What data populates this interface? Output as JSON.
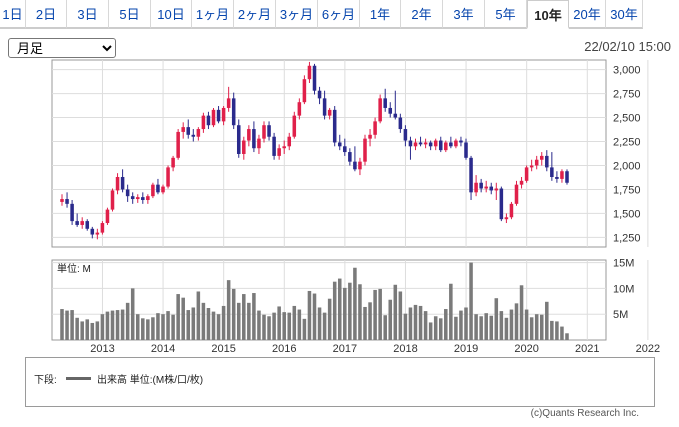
{
  "tabs": [
    {
      "label": "1日",
      "w": 26
    },
    {
      "label": "2日",
      "w": 41
    },
    {
      "label": "3日",
      "w": 42
    },
    {
      "label": "5日",
      "w": 42
    },
    {
      "label": "10日",
      "w": 41
    },
    {
      "label": "1ヶ月",
      "w": 42
    },
    {
      "label": "2ヶ月",
      "w": 42
    },
    {
      "label": "3ヶ月",
      "w": 42
    },
    {
      "label": "6ヶ月",
      "w": 42
    },
    {
      "label": "1年",
      "w": 41
    },
    {
      "label": "2年",
      "w": 42
    },
    {
      "label": "3年",
      "w": 42
    },
    {
      "label": "5年",
      "w": 42
    },
    {
      "label": "10年",
      "w": 41,
      "active": true
    },
    {
      "label": "20年",
      "w": 37
    },
    {
      "label": "30年",
      "w": 37
    }
  ],
  "period_select": {
    "value": "月足",
    "options": [
      "月足"
    ]
  },
  "as_of": "22/02/10 15:00",
  "legend": {
    "prefix": "下段:",
    "text": "出来高 単位:(M株/口/枚)"
  },
  "copyright": "(c)Quants Research Inc.",
  "chart_data": {
    "type": "candlestick",
    "interval": "monthly",
    "price_axis": {
      "ticks": [
        1250,
        1500,
        1750,
        2000,
        2250,
        2500,
        2750,
        3000
      ],
      "range": [
        1150,
        3100
      ]
    },
    "volume_axis": {
      "unit_label": "単位: M",
      "ticks": [
        "15M",
        "10M",
        "5M"
      ],
      "range": [
        0,
        15.5
      ]
    },
    "year_labels": [
      "2013",
      "2014",
      "2015",
      "2016",
      "2017",
      "2018",
      "2019",
      "2020",
      "2021",
      "2022"
    ],
    "colors": {
      "up": "#e0204a",
      "down": "#2a2a8c",
      "volume": "#7a7a7a",
      "grid": "#dddddd"
    },
    "ohlc": [
      [
        1620,
        1700,
        1580,
        1650
      ],
      [
        1650,
        1720,
        1560,
        1600
      ],
      [
        1600,
        1640,
        1380,
        1420
      ],
      [
        1420,
        1500,
        1360,
        1380
      ],
      [
        1380,
        1460,
        1340,
        1420
      ],
      [
        1420,
        1440,
        1320,
        1340
      ],
      [
        1340,
        1360,
        1240,
        1280
      ],
      [
        1280,
        1340,
        1230,
        1300
      ],
      [
        1300,
        1420,
        1280,
        1400
      ],
      [
        1400,
        1560,
        1380,
        1540
      ],
      [
        1540,
        1760,
        1520,
        1740
      ],
      [
        1740,
        1920,
        1700,
        1880
      ],
      [
        1880,
        1960,
        1720,
        1750
      ],
      [
        1750,
        1800,
        1620,
        1680
      ],
      [
        1680,
        1720,
        1600,
        1650
      ],
      [
        1650,
        1700,
        1610,
        1670
      ],
      [
        1670,
        1720,
        1600,
        1640
      ],
      [
        1640,
        1700,
        1600,
        1680
      ],
      [
        1680,
        1820,
        1660,
        1800
      ],
      [
        1800,
        1860,
        1700,
        1720
      ],
      [
        1720,
        1800,
        1700,
        1780
      ],
      [
        1780,
        2000,
        1760,
        1980
      ],
      [
        1980,
        2100,
        1940,
        2080
      ],
      [
        2080,
        2380,
        2060,
        2350
      ],
      [
        2350,
        2450,
        2280,
        2400
      ],
      [
        2400,
        2480,
        2280,
        2320
      ],
      [
        2320,
        2380,
        2250,
        2300
      ],
      [
        2300,
        2400,
        2260,
        2380
      ],
      [
        2380,
        2550,
        2340,
        2520
      ],
      [
        2520,
        2560,
        2380,
        2420
      ],
      [
        2420,
        2600,
        2400,
        2580
      ],
      [
        2580,
        2620,
        2440,
        2460
      ],
      [
        2460,
        2620,
        2420,
        2600
      ],
      [
        2600,
        2820,
        2560,
        2700
      ],
      [
        2700,
        2760,
        2380,
        2420
      ],
      [
        2420,
        2480,
        2080,
        2120
      ],
      [
        2120,
        2300,
        2060,
        2260
      ],
      [
        2260,
        2420,
        2200,
        2380
      ],
      [
        2380,
        2460,
        2140,
        2180
      ],
      [
        2180,
        2320,
        2120,
        2280
      ],
      [
        2280,
        2460,
        2240,
        2420
      ],
      [
        2420,
        2460,
        2260,
        2300
      ],
      [
        2300,
        2340,
        2060,
        2100
      ],
      [
        2100,
        2220,
        2060,
        2180
      ],
      [
        2180,
        2260,
        2120,
        2200
      ],
      [
        2200,
        2340,
        2160,
        2300
      ],
      [
        2300,
        2560,
        2280,
        2520
      ],
      [
        2520,
        2700,
        2480,
        2660
      ],
      [
        2660,
        2940,
        2640,
        2900
      ],
      [
        2900,
        3080,
        2860,
        3040
      ],
      [
        3040,
        3060,
        2740,
        2780
      ],
      [
        2780,
        2820,
        2640,
        2700
      ],
      [
        2700,
        2780,
        2480,
        2520
      ],
      [
        2520,
        2600,
        2480,
        2580
      ],
      [
        2580,
        2620,
        2200,
        2240
      ],
      [
        2240,
        2320,
        2160,
        2200
      ],
      [
        2200,
        2280,
        2100,
        2140
      ],
      [
        2140,
        2180,
        2000,
        2040
      ],
      [
        2040,
        2200,
        1940,
        1960
      ],
      [
        1960,
        2080,
        1900,
        2040
      ],
      [
        2040,
        2320,
        2000,
        2280
      ],
      [
        2280,
        2380,
        2200,
        2320
      ],
      [
        2320,
        2500,
        2280,
        2460
      ],
      [
        2460,
        2740,
        2440,
        2700
      ],
      [
        2700,
        2800,
        2560,
        2600
      ],
      [
        2600,
        2660,
        2500,
        2540
      ],
      [
        2540,
        2780,
        2480,
        2500
      ],
      [
        2500,
        2540,
        2340,
        2380
      ],
      [
        2380,
        2420,
        2200,
        2260
      ],
      [
        2260,
        2300,
        2060,
        2200
      ],
      [
        2200,
        2280,
        2160,
        2240
      ],
      [
        2240,
        2300,
        2200,
        2220
      ],
      [
        2220,
        2280,
        2180,
        2240
      ],
      [
        2240,
        2260,
        2160,
        2200
      ],
      [
        2200,
        2280,
        2160,
        2260
      ],
      [
        2260,
        2300,
        2140,
        2160
      ],
      [
        2160,
        2260,
        2140,
        2240
      ],
      [
        2240,
        2300,
        2180,
        2200
      ],
      [
        2200,
        2280,
        2180,
        2260
      ],
      [
        2260,
        2300,
        2200,
        2240
      ],
      [
        2240,
        2280,
        2060,
        2080
      ],
      [
        2080,
        2100,
        1640,
        1720
      ],
      [
        1720,
        1900,
        1680,
        1820
      ],
      [
        1820,
        1860,
        1720,
        1760
      ],
      [
        1760,
        1840,
        1720,
        1780
      ],
      [
        1780,
        1820,
        1700,
        1740
      ],
      [
        1740,
        1820,
        1640,
        1760
      ],
      [
        1760,
        1780,
        1420,
        1440
      ],
      [
        1440,
        1500,
        1400,
        1460
      ],
      [
        1460,
        1620,
        1440,
        1600
      ],
      [
        1600,
        1840,
        1580,
        1800
      ],
      [
        1800,
        1880,
        1760,
        1840
      ],
      [
        1840,
        2000,
        1820,
        1980
      ],
      [
        1980,
        2060,
        1940,
        2000
      ],
      [
        2000,
        2100,
        1960,
        2060
      ],
      [
        2060,
        2140,
        2000,
        2100
      ],
      [
        2100,
        2160,
        1940,
        1980
      ],
      [
        1980,
        2140,
        1840,
        1880
      ],
      [
        1880,
        1940,
        1820,
        1860
      ],
      [
        1860,
        1960,
        1820,
        1940
      ],
      [
        1940,
        1960,
        1800,
        1820
      ]
    ],
    "volume": [
      6.0,
      5.7,
      5.8,
      4.3,
      3.6,
      4.0,
      3.3,
      3.6,
      5.0,
      5.5,
      5.7,
      5.8,
      5.9,
      7.2,
      10.0,
      5.0,
      4.2,
      4.0,
      4.4,
      5.2,
      5.0,
      5.6,
      4.9,
      8.9,
      8.2,
      5.8,
      6.3,
      9.4,
      7.2,
      6.2,
      5.5,
      5.0,
      6.6,
      11.6,
      9.9,
      7.2,
      8.9,
      7.2,
      9.1,
      5.7,
      4.9,
      4.6,
      5.3,
      6.5,
      5.4,
      5.3,
      6.6,
      5.9,
      4.1,
      9.5,
      9.0,
      6.3,
      5.3,
      8.0,
      11.3,
      11.9,
      10.1,
      11.1,
      14.0,
      10.8,
      6.4,
      7.3,
      9.7,
      9.9,
      4.8,
      7.8,
      10.7,
      9.4,
      5.1,
      6.3,
      6.8,
      6.6,
      5.6,
      3.4,
      4.6,
      4.2,
      6.0,
      10.9,
      4.5,
      5.7,
      6.3,
      15.0,
      5.0,
      4.6,
      5.2,
      4.7,
      8.1,
      5.6,
      4.3,
      5.9,
      7.1,
      10.6,
      5.9,
      4.4,
      5.0,
      4.9,
      7.4,
      3.7,
      3.6,
      2.6,
      1.3
    ]
  }
}
